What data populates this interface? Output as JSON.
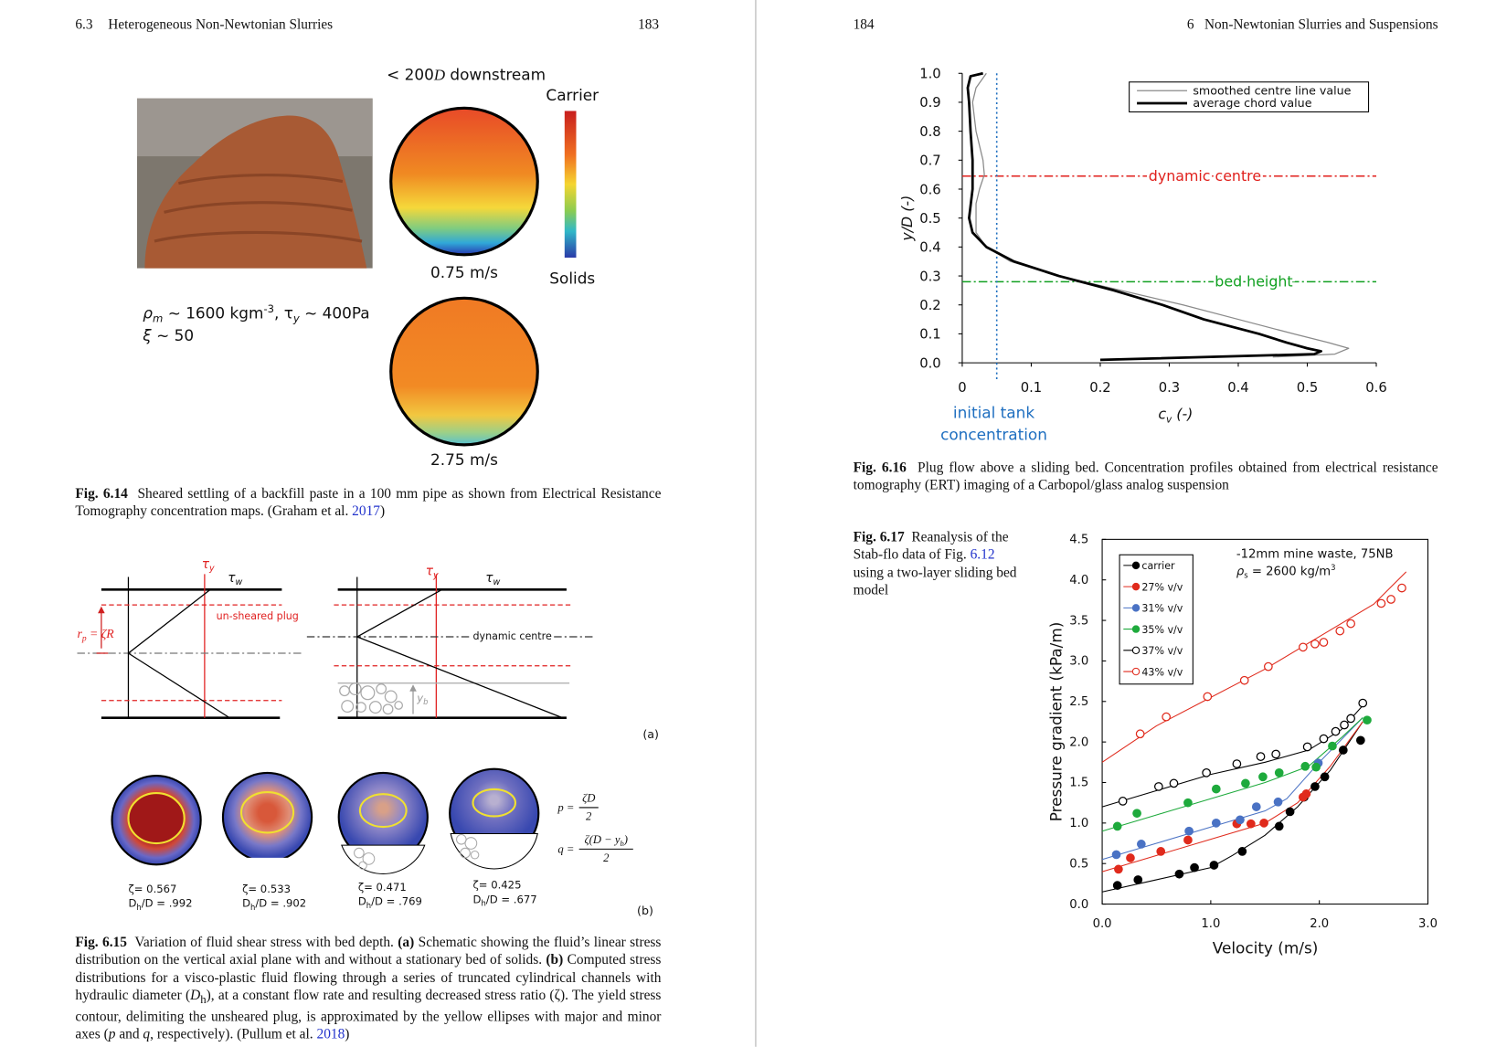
{
  "left_page": {
    "header": {
      "section": "6.3",
      "title": "Heterogeneous Non-Newtonian Slurries",
      "page": "183"
    },
    "fig_6_14": {
      "heading": [
        "< 200",
        "D",
        " downstream"
      ],
      "colorbar_top": "Carrier",
      "colorbar_bottom": "Solids",
      "speed_1": "0.75 m/s",
      "speed_2": "2.75 m/s",
      "props_line1": [
        "ρ",
        "m",
        " ~ 1600 kgm",
        "-3",
        ", τ",
        "y",
        " ~ 400Pa"
      ],
      "props_line2": [
        "ξ",
        " ~ 50"
      ],
      "caption": {
        "label": "Fig. 6.14",
        "parts": [
          "Sheared settling of a backfill paste in a 100 mm pipe as shown from Electrical Resistance Tomography concentration maps. (Graham et al. ",
          "2017",
          ")"
        ]
      }
    },
    "fig_6_15": {
      "tau_y": [
        "τ",
        "y"
      ],
      "tau_w": [
        "τ",
        "w"
      ],
      "plug": "un-sheared plug",
      "rp": [
        "r",
        "p",
        " = ζR"
      ],
      "dynamic_centre": "dynamic centre",
      "yb": [
        "y",
        "b"
      ],
      "panel_a": "(a)",
      "panel_b": "(b)",
      "cases": [
        {
          "zeta": "ζ= 0.567",
          "ratio": [
            "D",
            "h",
            "/D = .992"
          ]
        },
        {
          "zeta": "ζ= 0.533",
          "ratio": [
            "D",
            "h",
            "/D = .902"
          ]
        },
        {
          "zeta": "ζ= 0.471",
          "ratio": [
            "D",
            "h",
            "/D = .769"
          ]
        },
        {
          "zeta": "ζ= 0.425",
          "ratio": [
            "D",
            "h",
            "/D = .677"
          ]
        }
      ],
      "p_eq": [
        "p =",
        "ζD",
        "2"
      ],
      "q_eq": [
        "q =",
        "ζ(D − y",
        "b",
        ")",
        "2"
      ],
      "caption": {
        "label": "Fig. 6.15",
        "parts": [
          "Variation of fluid shear stress with bed depth. ",
          "(a)",
          " Schematic showing the fluid’s linear stress distribution on the vertical axial plane with and without a stationary bed of solids. ",
          "(b)",
          " Computed stress distributions for a visco-plastic fluid flowing through a series of truncated cylindrical channels with hydraulic diameter (",
          "D",
          "h",
          "), at a constant flow rate and resulting decreased stress ratio (ζ). The yield stress contour, delimiting the unsheared plug, is approximated by the yellow ellipses with major and minor axes (",
          "p",
          " and ",
          "q",
          ", respectively). (Pullum et al. ",
          "2018",
          ")"
        ]
      }
    }
  },
  "right_page": {
    "header": {
      "page": "184",
      "chapter": "6",
      "title": "Non-Newtonian Slurries and Suspensions"
    },
    "fig_6_16": {
      "chart_data": {
        "type": "line",
        "ylabel": "y/D (-)",
        "xlabel": [
          "c",
          "v",
          " (-)"
        ],
        "xlim": [
          0,
          0.6
        ],
        "xticks": [
          0,
          0.1,
          0.2,
          0.3,
          0.4,
          0.5,
          0.6
        ],
        "ylim": [
          0,
          1
        ],
        "yticks": [
          {
            "value": 0,
            "label": "0.0"
          },
          0.1,
          0.2,
          0.3,
          0.4,
          0.5,
          0.6,
          0.7,
          0.8,
          0.9,
          {
            "value": 1,
            "label": "1.0"
          }
        ],
        "legend": "upper right",
        "series": [
          {
            "name": "smoothed centre line value",
            "color": "#8a8a8a",
            "line_width": 1.2,
            "x": [
              0.035,
              0.02,
              0.015,
              0.02,
              0.03,
              0.032,
              0.025,
              0.02,
              0.02,
              0.02,
              0.035,
              0.07,
              0.14,
              0.23,
              0.32,
              0.4,
              0.48,
              0.53,
              0.56,
              0.54,
              0.45
            ],
            "values": [
              1.0,
              0.95,
              0.9,
              0.8,
              0.7,
              0.65,
              0.6,
              0.55,
              0.5,
              0.45,
              0.4,
              0.35,
              0.3,
              0.25,
              0.2,
              0.15,
              0.1,
              0.07,
              0.05,
              0.03,
              0.02
            ]
          },
          {
            "name": "average chord value",
            "color": "#000000",
            "line_width": 2.6,
            "x": [
              0.03,
              0.012,
              0.008,
              0.01,
              0.012,
              0.015,
              0.015,
              0.01,
              0.015,
              0.035,
              0.075,
              0.14,
              0.22,
              0.29,
              0.35,
              0.43,
              0.47,
              0.5,
              0.52,
              0.51,
              0.2
            ],
            "values": [
              1.0,
              0.99,
              0.95,
              0.9,
              0.8,
              0.7,
              0.6,
              0.5,
              0.45,
              0.4,
              0.35,
              0.3,
              0.25,
              0.2,
              0.15,
              0.1,
              0.07,
              0.05,
              0.04,
              0.03,
              0.01
            ]
          }
        ],
        "hlines": [
          {
            "value": 0.645,
            "label": "dynamic centre",
            "color": "#e0201c"
          },
          {
            "value": 0.28,
            "label": "bed height",
            "color": "#10a020"
          }
        ],
        "vline": {
          "value": 0.05,
          "label": [
            "initial tank",
            "concentration"
          ],
          "color": "#1f6fc0"
        }
      },
      "caption": {
        "label": "Fig. 6.16",
        "parts": [
          "Plug flow above a sliding bed. Concentration profiles obtained from electrical resistance tomography (ERT) imaging of a Carbopol/glass analog suspension"
        ]
      }
    },
    "fig_6_17": {
      "chart_data": {
        "type": "scatter",
        "xlabel": "Velocity (m/s)",
        "ylabel": "Pressure gradient (kPa/m)",
        "annotation_1": "-12mm mine waste, 75NB",
        "annotation_2": [
          "ρ",
          "s",
          " = 2600 kg/m",
          "3"
        ],
        "xlim": [
          0,
          3
        ],
        "xticks": [
          {
            "value": 0,
            "label": "0.0"
          },
          {
            "value": 1,
            "label": "1.0"
          },
          {
            "value": 2,
            "label": "2.0"
          },
          {
            "value": 3,
            "label": "3.0"
          }
        ],
        "ylim": [
          0,
          4.5
        ],
        "yticks": [
          {
            "value": 0,
            "label": "0.0"
          },
          0.5,
          {
            "value": 1,
            "label": "1.0"
          },
          1.5,
          {
            "value": 2,
            "label": "2.0"
          },
          2.5,
          {
            "value": 3,
            "label": "3.0"
          },
          3.5,
          {
            "value": 4,
            "label": "4.0"
          },
          4.5
        ],
        "legend": "upper left",
        "series": [
          {
            "name": "carrier",
            "color": "#000000",
            "marker": "filled",
            "x": [
              0.14,
              0.33,
              0.71,
              0.85,
              1.03,
              1.29,
              1.63,
              1.73,
              1.86,
              1.96,
              2.05,
              2.22,
              2.38
            ],
            "values": [
              0.23,
              0.3,
              0.37,
              0.45,
              0.48,
              0.65,
              0.96,
              1.14,
              1.32,
              1.45,
              1.57,
              1.9,
              2.02
            ],
            "fit_x": [
              0,
              0.5,
              1.0,
              1.2,
              1.5,
              1.8,
              2.1,
              2.4
            ],
            "fit_values": [
              0.15,
              0.3,
              0.45,
              0.6,
              0.85,
              1.2,
              1.65,
              2.25
            ]
          },
          {
            "name": "27% v/v",
            "color": "#e02a1c",
            "marker": "filled",
            "x": [
              0.15,
              0.26,
              0.54,
              0.79,
              1.24,
              1.37,
              1.49,
              1.85,
              1.88
            ],
            "values": [
              0.43,
              0.57,
              0.65,
              0.79,
              0.99,
              0.99,
              1.0,
              1.32,
              1.36
            ],
            "fit_x": [
              0,
              0.5,
              1.0,
              1.5,
              1.8,
              2.1,
              2.4
            ],
            "fit_values": [
              0.4,
              0.6,
              0.8,
              1.0,
              1.25,
              1.7,
              2.25
            ]
          },
          {
            "name": "31% v/v",
            "color": "#4a72c4",
            "marker": "filled",
            "x": [
              0.13,
              0.36,
              0.8,
              1.05,
              1.27,
              1.42,
              1.62,
              1.99
            ],
            "values": [
              0.61,
              0.74,
              0.9,
              1.0,
              1.04,
              1.2,
              1.26,
              1.74
            ],
            "fit_x": [
              0,
              0.5,
              1.0,
              1.5,
              1.7,
              2.0,
              2.4
            ],
            "fit_values": [
              0.55,
              0.75,
              0.95,
              1.15,
              1.3,
              1.75,
              2.3
            ]
          },
          {
            "name": "35% v/v",
            "color": "#1eaa3c",
            "marker": "filled",
            "x": [
              0.14,
              0.32,
              0.79,
              1.05,
              1.32,
              1.48,
              1.63,
              1.87,
              1.97,
              2.12,
              2.44
            ],
            "values": [
              0.96,
              1.12,
              1.25,
              1.42,
              1.49,
              1.57,
              1.62,
              1.7,
              1.69,
              1.95,
              2.27
            ],
            "fit_x": [
              0,
              0.5,
              1.0,
              1.5,
              1.9,
              2.2,
              2.4
            ],
            "fit_values": [
              0.9,
              1.1,
              1.3,
              1.5,
              1.7,
              2.05,
              2.3
            ]
          },
          {
            "name": "37% v/v",
            "color": "#000000",
            "marker": "open",
            "x": [
              0.19,
              0.52,
              0.66,
              0.96,
              1.24,
              1.46,
              1.6,
              1.89,
              2.04,
              2.15,
              2.23,
              2.29,
              2.4
            ],
            "values": [
              1.27,
              1.45,
              1.49,
              1.62,
              1.73,
              1.82,
              1.85,
              1.94,
              2.04,
              2.13,
              2.21,
              2.29,
              2.48
            ],
            "fit_x": [
              0,
              0.5,
              1.0,
              1.5,
              1.9,
              2.2,
              2.4
            ],
            "fit_values": [
              1.2,
              1.4,
              1.6,
              1.75,
              1.9,
              2.15,
              2.45
            ]
          },
          {
            "name": "43% v/v",
            "color": "#e02a1c",
            "marker": "open",
            "x": [
              0.35,
              0.59,
              0.97,
              1.31,
              1.53,
              1.85,
              1.96,
              2.04,
              2.19,
              2.29,
              2.57,
              2.66,
              2.76
            ],
            "values": [
              2.1,
              2.31,
              2.56,
              2.76,
              2.93,
              3.17,
              3.21,
              3.23,
              3.37,
              3.46,
              3.71,
              3.76,
              3.9
            ],
            "fit_x": [
              0,
              0.5,
              1.0,
              1.5,
              2.0,
              2.5,
              2.8
            ],
            "fit_values": [
              1.75,
              2.2,
              2.55,
              2.9,
              3.3,
              3.7,
              4.1
            ]
          }
        ]
      },
      "caption": {
        "label": "Fig. 6.17",
        "parts": [
          "Reanalysis of the Stab-flo data of Fig. ",
          "6.12",
          " using a two-layer sliding bed model"
        ]
      }
    }
  }
}
